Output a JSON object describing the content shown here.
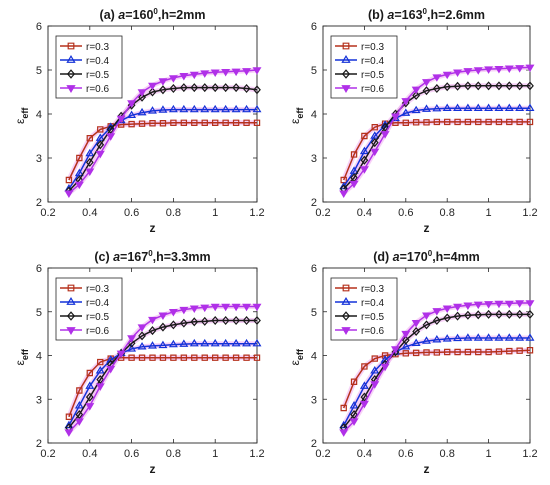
{
  "chart_data": [
    {
      "type": "line",
      "panel_label": "(a)",
      "title": "a=160⁰,h=2mm",
      "title_parts": {
        "sym": "a",
        "base": "=160",
        "sup": "0",
        "tail": ",h=2mm"
      },
      "xlabel": "z",
      "ylabel": "ε_eff",
      "xlim": [
        0.2,
        1.2
      ],
      "ylim": [
        2,
        6
      ],
      "xticks": [
        0.2,
        0.4,
        0.6,
        0.8,
        1,
        1.2
      ],
      "yticks": [
        2,
        3,
        4,
        5,
        6
      ],
      "legend_position": "top-left",
      "x": [
        0.3,
        0.35,
        0.4,
        0.45,
        0.5,
        0.55,
        0.6,
        0.65,
        0.7,
        0.75,
        0.8,
        0.85,
        0.9,
        0.95,
        1.0,
        1.05,
        1.1,
        1.15,
        1.2
      ],
      "series": [
        {
          "name": "r=0.3",
          "values": [
            2.5,
            3.0,
            3.45,
            3.65,
            3.72,
            3.76,
            3.77,
            3.78,
            3.79,
            3.79,
            3.8,
            3.8,
            3.8,
            3.8,
            3.8,
            3.8,
            3.8,
            3.8,
            3.8
          ]
        },
        {
          "name": "r=0.4",
          "values": [
            2.3,
            2.65,
            3.1,
            3.45,
            3.7,
            3.85,
            3.97,
            4.03,
            4.07,
            4.09,
            4.1,
            4.1,
            4.1,
            4.1,
            4.1,
            4.1,
            4.1,
            4.1,
            4.1
          ]
        },
        {
          "name": "r=0.5",
          "values": [
            2.25,
            2.5,
            2.9,
            3.3,
            3.65,
            3.95,
            4.2,
            4.38,
            4.5,
            4.55,
            4.58,
            4.6,
            4.6,
            4.6,
            4.6,
            4.6,
            4.6,
            4.58,
            4.55
          ]
        },
        {
          "name": "r=0.6",
          "values": [
            2.2,
            2.4,
            2.7,
            3.1,
            3.5,
            3.9,
            4.25,
            4.5,
            4.65,
            4.75,
            4.82,
            4.87,
            4.9,
            4.93,
            4.95,
            4.96,
            4.97,
            4.98,
            5.0
          ]
        }
      ]
    },
    {
      "type": "line",
      "panel_label": "(b)",
      "title": "a=163⁰,h=2.6mm",
      "title_parts": {
        "sym": "a",
        "base": "=163",
        "sup": "0",
        "tail": ",h=2.6mm"
      },
      "xlabel": "z",
      "ylabel": "ε_eff",
      "xlim": [
        0.2,
        1.2
      ],
      "ylim": [
        2,
        6
      ],
      "xticks": [
        0.2,
        0.4,
        0.6,
        0.8,
        1,
        1.2
      ],
      "yticks": [
        2,
        3,
        4,
        5,
        6
      ],
      "legend_position": "top-left",
      "x": [
        0.3,
        0.35,
        0.4,
        0.45,
        0.5,
        0.55,
        0.6,
        0.65,
        0.7,
        0.75,
        0.8,
        0.85,
        0.9,
        0.95,
        1.0,
        1.05,
        1.1,
        1.15,
        1.2
      ],
      "series": [
        {
          "name": "r=0.3",
          "values": [
            2.5,
            3.08,
            3.5,
            3.7,
            3.78,
            3.8,
            3.8,
            3.81,
            3.81,
            3.82,
            3.82,
            3.82,
            3.82,
            3.82,
            3.82,
            3.82,
            3.82,
            3.82,
            3.82
          ]
        },
        {
          "name": "r=0.4",
          "values": [
            2.35,
            2.7,
            3.15,
            3.5,
            3.75,
            3.9,
            4.02,
            4.08,
            4.11,
            4.12,
            4.13,
            4.13,
            4.13,
            4.13,
            4.13,
            4.13,
            4.13,
            4.13,
            4.13
          ]
        },
        {
          "name": "r=0.5",
          "values": [
            2.3,
            2.55,
            2.95,
            3.35,
            3.7,
            4.0,
            4.25,
            4.42,
            4.53,
            4.58,
            4.62,
            4.63,
            4.64,
            4.64,
            4.64,
            4.64,
            4.64,
            4.64,
            4.64
          ]
        },
        {
          "name": "r=0.6",
          "values": [
            2.2,
            2.42,
            2.75,
            3.15,
            3.55,
            3.95,
            4.3,
            4.56,
            4.73,
            4.84,
            4.9,
            4.95,
            4.98,
            5.0,
            5.02,
            5.03,
            5.04,
            5.05,
            5.06
          ]
        }
      ]
    },
    {
      "type": "line",
      "panel_label": "(c)",
      "title": "a=167⁰,h=3.3mm",
      "title_parts": {
        "sym": "a",
        "base": "=167",
        "sup": "0",
        "tail": ",h=3.3mm"
      },
      "xlabel": "z",
      "ylabel": "ε_eff",
      "xlim": [
        0.2,
        1.2
      ],
      "ylim": [
        2,
        6
      ],
      "xticks": [
        0.2,
        0.4,
        0.6,
        0.8,
        1,
        1.2
      ],
      "yticks": [
        2,
        3,
        4,
        5,
        6
      ],
      "legend_position": "top-left",
      "x": [
        0.3,
        0.35,
        0.4,
        0.45,
        0.5,
        0.55,
        0.6,
        0.65,
        0.7,
        0.75,
        0.8,
        0.85,
        0.9,
        0.95,
        1.0,
        1.05,
        1.1,
        1.15,
        1.2
      ],
      "series": [
        {
          "name": "r=0.3",
          "values": [
            2.6,
            3.2,
            3.6,
            3.85,
            3.93,
            3.95,
            3.95,
            3.95,
            3.95,
            3.95,
            3.95,
            3.95,
            3.95,
            3.95,
            3.95,
            3.95,
            3.95,
            3.95,
            3.95
          ]
        },
        {
          "name": "r=0.4",
          "values": [
            2.4,
            2.85,
            3.3,
            3.65,
            3.9,
            4.05,
            4.15,
            4.2,
            4.22,
            4.23,
            4.25,
            4.26,
            4.27,
            4.27,
            4.27,
            4.27,
            4.27,
            4.27,
            4.27
          ]
        },
        {
          "name": "r=0.5",
          "values": [
            2.35,
            2.65,
            3.05,
            3.45,
            3.8,
            4.05,
            4.28,
            4.45,
            4.57,
            4.65,
            4.7,
            4.74,
            4.77,
            4.78,
            4.8,
            4.8,
            4.8,
            4.8,
            4.8
          ]
        },
        {
          "name": "r=0.6",
          "values": [
            2.25,
            2.5,
            2.85,
            3.3,
            3.7,
            4.05,
            4.4,
            4.65,
            4.82,
            4.92,
            5.0,
            5.05,
            5.08,
            5.1,
            5.12,
            5.12,
            5.12,
            5.12,
            5.12
          ]
        }
      ]
    },
    {
      "type": "line",
      "panel_label": "(d)",
      "title": "a=170⁰,h=4mm",
      "title_parts": {
        "sym": "a",
        "base": "=170",
        "sup": "0",
        "tail": ",h=4mm"
      },
      "xlabel": "z",
      "ylabel": "ε_eff",
      "xlim": [
        0.2,
        1.2
      ],
      "ylim": [
        2,
        6
      ],
      "xticks": [
        0.2,
        0.4,
        0.6,
        0.8,
        1,
        1.2
      ],
      "yticks": [
        2,
        3,
        4,
        5,
        6
      ],
      "legend_position": "top-left",
      "x": [
        0.3,
        0.35,
        0.4,
        0.45,
        0.5,
        0.55,
        0.6,
        0.65,
        0.7,
        0.75,
        0.8,
        0.85,
        0.9,
        0.95,
        1.0,
        1.05,
        1.1,
        1.15,
        1.2
      ],
      "series": [
        {
          "name": "r=0.3",
          "values": [
            2.8,
            3.4,
            3.75,
            3.93,
            4.0,
            4.03,
            4.05,
            4.06,
            4.07,
            4.07,
            4.08,
            4.08,
            4.08,
            4.08,
            4.08,
            4.09,
            4.1,
            4.11,
            4.12
          ]
        },
        {
          "name": "r=0.4",
          "values": [
            2.4,
            2.85,
            3.3,
            3.65,
            3.9,
            4.08,
            4.2,
            4.28,
            4.33,
            4.36,
            4.38,
            4.39,
            4.4,
            4.4,
            4.4,
            4.4,
            4.4,
            4.4,
            4.4
          ]
        },
        {
          "name": "r=0.5",
          "values": [
            2.35,
            2.65,
            3.05,
            3.45,
            3.8,
            4.08,
            4.35,
            4.55,
            4.7,
            4.8,
            4.86,
            4.9,
            4.92,
            4.93,
            4.94,
            4.94,
            4.94,
            4.94,
            4.94
          ]
        },
        {
          "name": "r=0.6",
          "values": [
            2.25,
            2.5,
            2.9,
            3.35,
            3.75,
            4.15,
            4.5,
            4.75,
            4.92,
            5.02,
            5.08,
            5.12,
            5.15,
            5.17,
            5.18,
            5.19,
            5.19,
            5.2,
            5.2
          ]
        }
      ]
    }
  ],
  "style": {
    "series_colors": [
      "#b5311c",
      "#1432d8",
      "#1a1a1a",
      "#b030e8"
    ],
    "series_markers": [
      "square",
      "triangle",
      "diamond",
      "triangle-down"
    ],
    "glow_color": "#f2b8f2"
  }
}
